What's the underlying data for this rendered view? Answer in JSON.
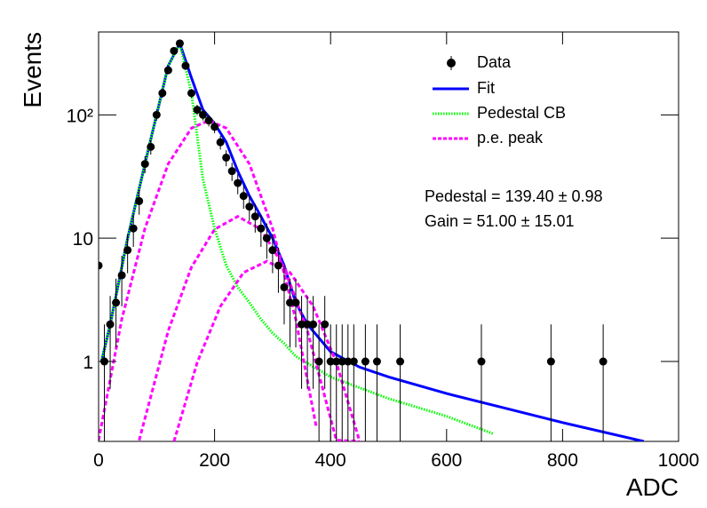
{
  "chart_data": {
    "type": "line",
    "x_label": "ADC",
    "y_label": "Events",
    "log_y": true,
    "grid": false,
    "xlim": [
      0,
      1000
    ],
    "ylim": [
      0.225,
      470
    ],
    "xticks": [
      0,
      200,
      400,
      600,
      800,
      1000
    ],
    "yticks": [
      1,
      10,
      {
        "value": 100,
        "label": "10²"
      }
    ],
    "annotations": [
      "Pedestal = 139.40 ± 0.98",
      "Gain = 51.00 ± 15.01"
    ],
    "series": [
      {
        "name": "Data",
        "color": "#000000",
        "style": "points",
        "x": [
          0,
          10,
          20,
          30,
          40,
          50,
          60,
          70,
          80,
          90,
          100,
          110,
          120,
          130,
          140,
          150,
          160,
          170,
          180,
          190,
          200,
          210,
          220,
          230,
          240,
          250,
          260,
          270,
          280,
          290,
          300,
          310,
          320,
          330,
          340,
          350,
          360,
          370,
          380,
          390,
          400,
          410,
          420,
          430,
          440,
          460,
          480,
          520,
          660,
          780,
          870
        ],
        "values": [
          6,
          1,
          2,
          3,
          5,
          8,
          12,
          20,
          40,
          55,
          100,
          150,
          230,
          330,
          380,
          250,
          150,
          110,
          100,
          90,
          80,
          60,
          45,
          35,
          28,
          22,
          18,
          15,
          12,
          10,
          8,
          6,
          4,
          3,
          3,
          2,
          2,
          2,
          1,
          2,
          1,
          1,
          1,
          1,
          1,
          1,
          1,
          1,
          1,
          1,
          1
        ],
        "errors": [
          2.4,
          1,
          1.4,
          1.7,
          2.2,
          2.8,
          3.5,
          4.5,
          6.3,
          7.4,
          10,
          12.2,
          15.2,
          18.2,
          19.5,
          15.8,
          12.2,
          10.5,
          10,
          9.5,
          8.9,
          7.7,
          6.7,
          5.9,
          5.3,
          4.7,
          4.2,
          3.9,
          3.5,
          3.2,
          2.8,
          2.4,
          2,
          1.7,
          1.7,
          1.4,
          1.4,
          1.4,
          1,
          1.4,
          1,
          1,
          1,
          1,
          1,
          1,
          1,
          1,
          1,
          1,
          1
        ]
      },
      {
        "name": "Fit",
        "color": "#0000ff",
        "style": "solid",
        "x": [
          5,
          20,
          50,
          80,
          100,
          120,
          140,
          160,
          180,
          200,
          220,
          240,
          260,
          280,
          300,
          320,
          340,
          360,
          400,
          450,
          500,
          600,
          700,
          800,
          940
        ],
        "values": [
          1,
          2,
          10,
          40,
          100,
          250,
          380,
          200,
          110,
          85,
          60,
          35,
          22,
          15,
          10,
          6,
          3,
          2,
          1.2,
          0.9,
          0.75,
          0.55,
          0.42,
          0.32,
          0.225
        ]
      },
      {
        "name": "Pedestal CB",
        "color": "#00ff00",
        "style": "dotted",
        "x": [
          5,
          20,
          50,
          80,
          100,
          120,
          140,
          160,
          180,
          200,
          220,
          240,
          260,
          280,
          300,
          320,
          340,
          400,
          500,
          600,
          680
        ],
        "values": [
          1,
          2,
          10,
          40,
          100,
          250,
          380,
          150,
          30,
          12,
          6,
          4,
          3,
          2.2,
          1.7,
          1.4,
          1.1,
          0.75,
          0.5,
          0.36,
          0.26
        ]
      },
      {
        "name": "p.e. peak",
        "color": "#ff00ff",
        "style": "dashed",
        "x": [
          0,
          40,
          80,
          120,
          160,
          190,
          220,
          260,
          300,
          340,
          375,
          375,
          70,
          120,
          160,
          200,
          240,
          280,
          320,
          360,
          410,
          450,
          450,
          130,
          170,
          210,
          250,
          290,
          330,
          370,
          410,
          450
        ],
        "values": [
          0.23,
          2.2,
          12,
          40,
          78,
          90,
          78,
          40,
          12,
          2.2,
          0.3,
          null,
          0.23,
          1.77,
          5.8,
          11.8,
          15,
          11.8,
          5.8,
          1.77,
          0.23,
          0.225,
          null,
          0.225,
          0.98,
          2.8,
          5.27,
          6.5,
          5.27,
          2.8,
          0.98,
          0.225
        ]
      }
    ]
  }
}
